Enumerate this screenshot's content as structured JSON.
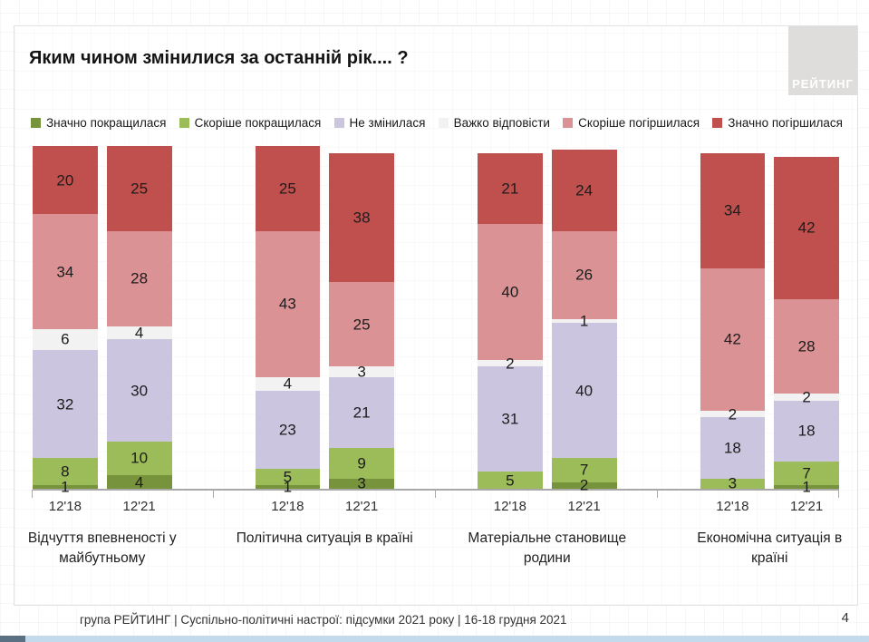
{
  "slide": {
    "title": "Яким чином змінилися за останній рік.... ?",
    "page_number": "4"
  },
  "logo": {
    "text": "РЕЙТИНГ"
  },
  "footer": {
    "text": "група РЕЙТИНГ | Суспільно-політичні настрої: підсумки 2021 року | 16-18 грудня 2021"
  },
  "chart_data": {
    "type": "bar",
    "variant": "stacked-100-percent",
    "unit": "percent",
    "legend_position": "top",
    "grid": false,
    "series": [
      {
        "name": "Значно покращилася",
        "color": "#77933C"
      },
      {
        "name": "Скоріше покращилася",
        "color": "#9CBB59"
      },
      {
        "name": "Не змінилася",
        "color": "#CCC5DF"
      },
      {
        "name": "Важко відповісти",
        "color": "#F2F2F2"
      },
      {
        "name": "Скоріше погіршилася",
        "color": "#DB9295"
      },
      {
        "name": "Значно погіршилася",
        "color": "#C0504D"
      }
    ],
    "groups": [
      {
        "label": "Відчуття впевненості у майбутньому",
        "bars": [
          {
            "x": "12'18",
            "values": [
              1,
              8,
              32,
              6,
              34,
              20
            ]
          },
          {
            "x": "12'21",
            "values": [
              4,
              10,
              30,
              4,
              28,
              25
            ]
          }
        ]
      },
      {
        "label": "Політична ситуація в країні",
        "bars": [
          {
            "x": "12'18",
            "values": [
              1,
              5,
              23,
              4,
              43,
              25
            ]
          },
          {
            "x": "12'21",
            "values": [
              3,
              9,
              21,
              3,
              25,
              38
            ]
          }
        ]
      },
      {
        "label": "Матеріальне становище родини",
        "bars": [
          {
            "x": "12'18",
            "values": [
              0,
              5,
              31,
              2,
              40,
              21
            ]
          },
          {
            "x": "12'21",
            "values": [
              2,
              7,
              40,
              1,
              26,
              24
            ]
          }
        ]
      },
      {
        "label": "Економічна ситуація в країні",
        "bars": [
          {
            "x": "12'18",
            "values": [
              0,
              3,
              18,
              2,
              42,
              34
            ]
          },
          {
            "x": "12'21",
            "values": [
              1,
              7,
              18,
              2,
              28,
              42
            ]
          }
        ]
      }
    ]
  }
}
